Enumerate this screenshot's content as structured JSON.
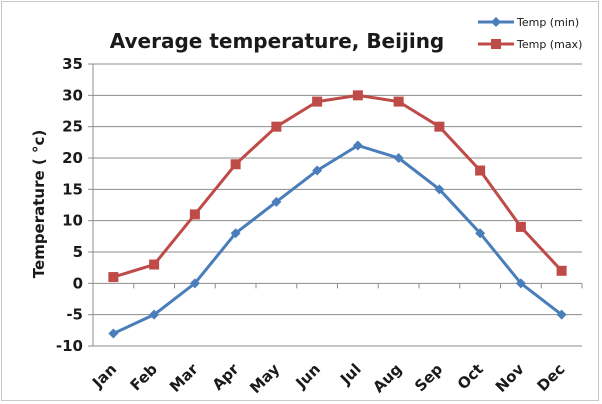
{
  "chart_data": {
    "type": "line",
    "title": "Average temperature, Beijing",
    "xlabel": "",
    "ylabel": "Temperature ( °c)",
    "categories": [
      "Jan",
      "Feb",
      "Mar",
      "Apr",
      "May",
      "Jun",
      "Jul",
      "Aug",
      "Sep",
      "Oct",
      "Nov",
      "Dec"
    ],
    "ylim": [
      -10,
      35
    ],
    "yticks": [
      -10,
      -5,
      0,
      5,
      10,
      15,
      20,
      25,
      30,
      35
    ],
    "grid": "horizontal",
    "legend_position": "top-right",
    "series": [
      {
        "name": "Temp (min)",
        "color": "#4a7ebb",
        "marker": "diamond",
        "values": [
          -8,
          -5,
          0,
          8,
          13,
          18,
          22,
          20,
          15,
          8,
          0,
          -5
        ]
      },
      {
        "name": "Temp (max)",
        "color": "#be4b48",
        "marker": "square",
        "values": [
          1,
          3,
          11,
          19,
          25,
          29,
          30,
          29,
          25,
          18,
          9,
          2
        ]
      }
    ]
  }
}
